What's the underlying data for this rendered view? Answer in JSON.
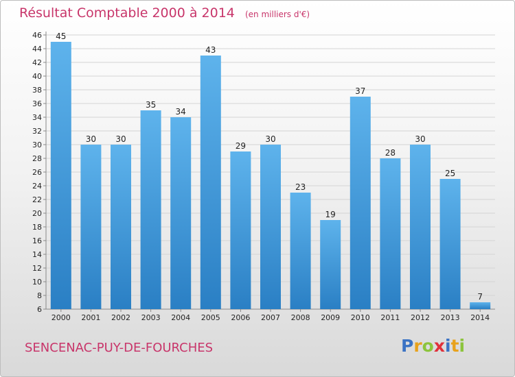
{
  "colors": {
    "title": "#c8356a",
    "bar_light": "#5eb3ec",
    "bar_dark": "#2a7fc4",
    "grid": "#d4d4d4",
    "axis_text": "#222222"
  },
  "header": {
    "title": "Résultat Comptable 2000 à 2014",
    "unit": "(en milliers d'€)"
  },
  "footer": {
    "place": "SENCENAC-PUY-DE-FOURCHES",
    "logo": "Proxiti",
    "logo_letters": [
      {
        "ch": "P",
        "color": "#3b73c4"
      },
      {
        "ch": "r",
        "color": "#e8a21c"
      },
      {
        "ch": "o",
        "color": "#8cc43c"
      },
      {
        "ch": "x",
        "color": "#e0303a"
      },
      {
        "ch": "i",
        "color": "#3b73c4"
      },
      {
        "ch": "t",
        "color": "#e8a21c"
      },
      {
        "ch": "i",
        "color": "#8cc43c"
      }
    ]
  },
  "chart_data": {
    "type": "bar",
    "title": "Résultat Comptable 2000 à 2014",
    "xlabel": "",
    "ylabel": "",
    "categories": [
      "2000",
      "2001",
      "2002",
      "2003",
      "2004",
      "2005",
      "2006",
      "2007",
      "2008",
      "2009",
      "2010",
      "2011",
      "2012",
      "2013",
      "2014"
    ],
    "values": [
      45,
      30,
      30,
      35,
      34,
      43,
      29,
      30,
      23,
      19,
      37,
      28,
      30,
      25,
      7
    ],
    "ylim": [
      6,
      46
    ],
    "yticks": [
      6,
      8,
      10,
      12,
      14,
      16,
      18,
      20,
      22,
      24,
      26,
      28,
      30,
      32,
      34,
      36,
      38,
      40,
      42,
      44,
      46
    ],
    "grid": true,
    "data_labels": true
  }
}
